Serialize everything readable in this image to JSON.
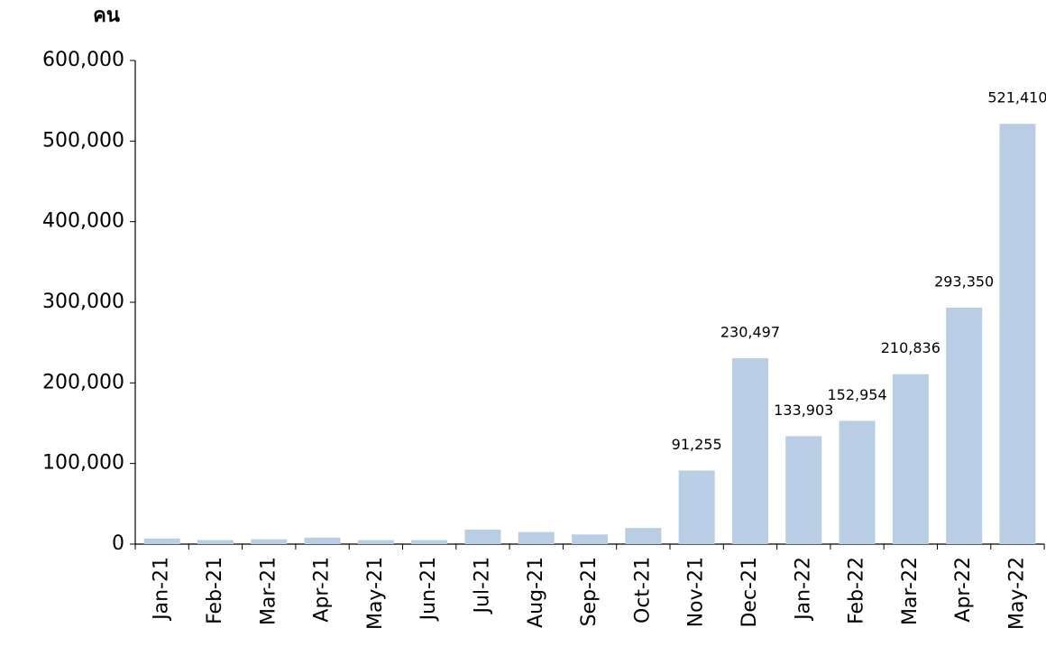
{
  "chart_data": {
    "type": "bar",
    "y_label": "คน",
    "categories": [
      "Jan-21",
      "Feb-21",
      "Mar-21",
      "Apr-21",
      "May-21",
      "Jun-21",
      "Jul-21",
      "Aug-21",
      "Sep-21",
      "Oct-21",
      "Nov-21",
      "Dec-21",
      "Jan-22",
      "Feb-22",
      "Mar-22",
      "Apr-22",
      "May-22"
    ],
    "values": [
      7000,
      5000,
      6000,
      8000,
      5000,
      5000,
      18000,
      15000,
      12000,
      20000,
      91255,
      230497,
      133903,
      152954,
      210836,
      293350,
      521410
    ],
    "value_labels": [
      null,
      null,
      null,
      null,
      null,
      null,
      null,
      null,
      null,
      null,
      "91,255",
      "230,497",
      "133,903",
      "152,954",
      "210,836",
      "293,350",
      "521,410"
    ],
    "color": "#b9cde5",
    "ylim": [
      0,
      600000
    ],
    "yticks": [
      0,
      {
        "value": 100000,
        "label": "100,000"
      },
      {
        "value": 200000,
        "label": "200,000"
      },
      {
        "value": 300000,
        "label": "300,000"
      },
      {
        "value": 400000,
        "label": "400,000"
      },
      {
        "value": 500000,
        "label": "500,000"
      },
      {
        "value": 600000,
        "label": "600,000"
      }
    ]
  }
}
